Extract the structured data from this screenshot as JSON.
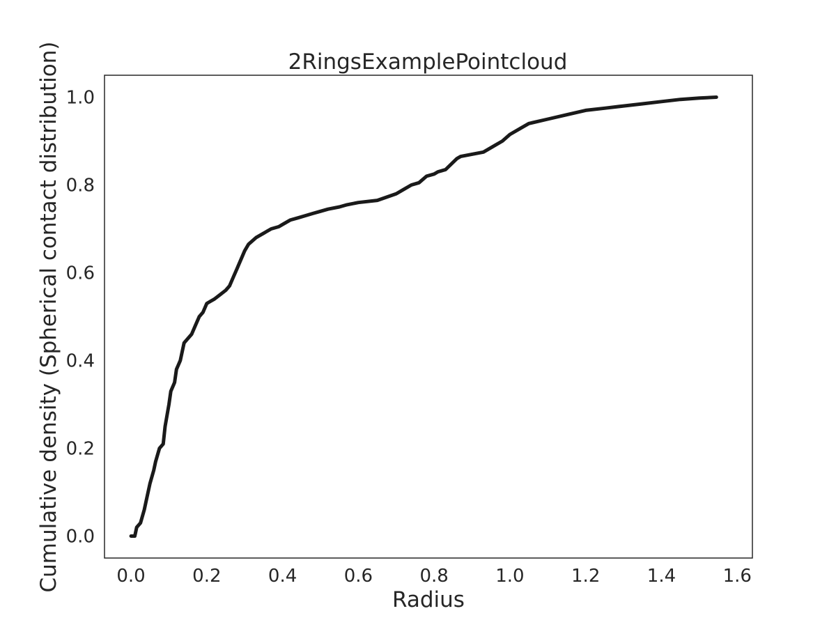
{
  "chart_data": {
    "type": "line",
    "title": "2RingsExamplePointcloud",
    "xlabel": "Radius",
    "ylabel": "Cumulative density (Spherical contact distribution)",
    "xlim": [
      -0.07,
      1.64
    ],
    "ylim": [
      -0.05,
      1.05
    ],
    "xticks": [
      "0.0",
      "0.2",
      "0.4",
      "0.6",
      "0.8",
      "1.0",
      "1.2",
      "1.4",
      "1.6"
    ],
    "yticks": [
      "0.0",
      "0.2",
      "0.4",
      "0.6",
      "0.8",
      "1.0"
    ],
    "grid": false,
    "line_color": "#1a1a1a",
    "series": [
      {
        "x": [
          0.0,
          0.01,
          0.015,
          0.025,
          0.035,
          0.04,
          0.05,
          0.06,
          0.065,
          0.075,
          0.085,
          0.09,
          0.1,
          0.105,
          0.115,
          0.12,
          0.13,
          0.14,
          0.15,
          0.16,
          0.17,
          0.18,
          0.19,
          0.2,
          0.21,
          0.22,
          0.235,
          0.25,
          0.26,
          0.27,
          0.28,
          0.29,
          0.3,
          0.31,
          0.33,
          0.35,
          0.37,
          0.39,
          0.4,
          0.42,
          0.44,
          0.46,
          0.48,
          0.5,
          0.52,
          0.55,
          0.57,
          0.6,
          0.65,
          0.7,
          0.72,
          0.74,
          0.76,
          0.78,
          0.8,
          0.81,
          0.83,
          0.86,
          0.87,
          0.9,
          0.93,
          0.96,
          0.98,
          1.0,
          1.03,
          1.05,
          1.1,
          1.15,
          1.2,
          1.25,
          1.3,
          1.35,
          1.4,
          1.45,
          1.5,
          1.545
        ],
        "y": [
          0.0,
          0.0,
          0.02,
          0.03,
          0.06,
          0.08,
          0.12,
          0.15,
          0.17,
          0.2,
          0.21,
          0.25,
          0.3,
          0.33,
          0.35,
          0.38,
          0.4,
          0.44,
          0.45,
          0.46,
          0.48,
          0.5,
          0.51,
          0.53,
          0.535,
          0.54,
          0.55,
          0.56,
          0.57,
          0.59,
          0.61,
          0.63,
          0.65,
          0.665,
          0.68,
          0.69,
          0.7,
          0.705,
          0.71,
          0.72,
          0.725,
          0.73,
          0.735,
          0.74,
          0.745,
          0.75,
          0.755,
          0.76,
          0.765,
          0.78,
          0.79,
          0.8,
          0.805,
          0.82,
          0.825,
          0.83,
          0.835,
          0.86,
          0.865,
          0.87,
          0.875,
          0.89,
          0.9,
          0.915,
          0.93,
          0.94,
          0.95,
          0.96,
          0.97,
          0.975,
          0.98,
          0.985,
          0.99,
          0.995,
          0.998,
          1.0
        ]
      }
    ]
  }
}
